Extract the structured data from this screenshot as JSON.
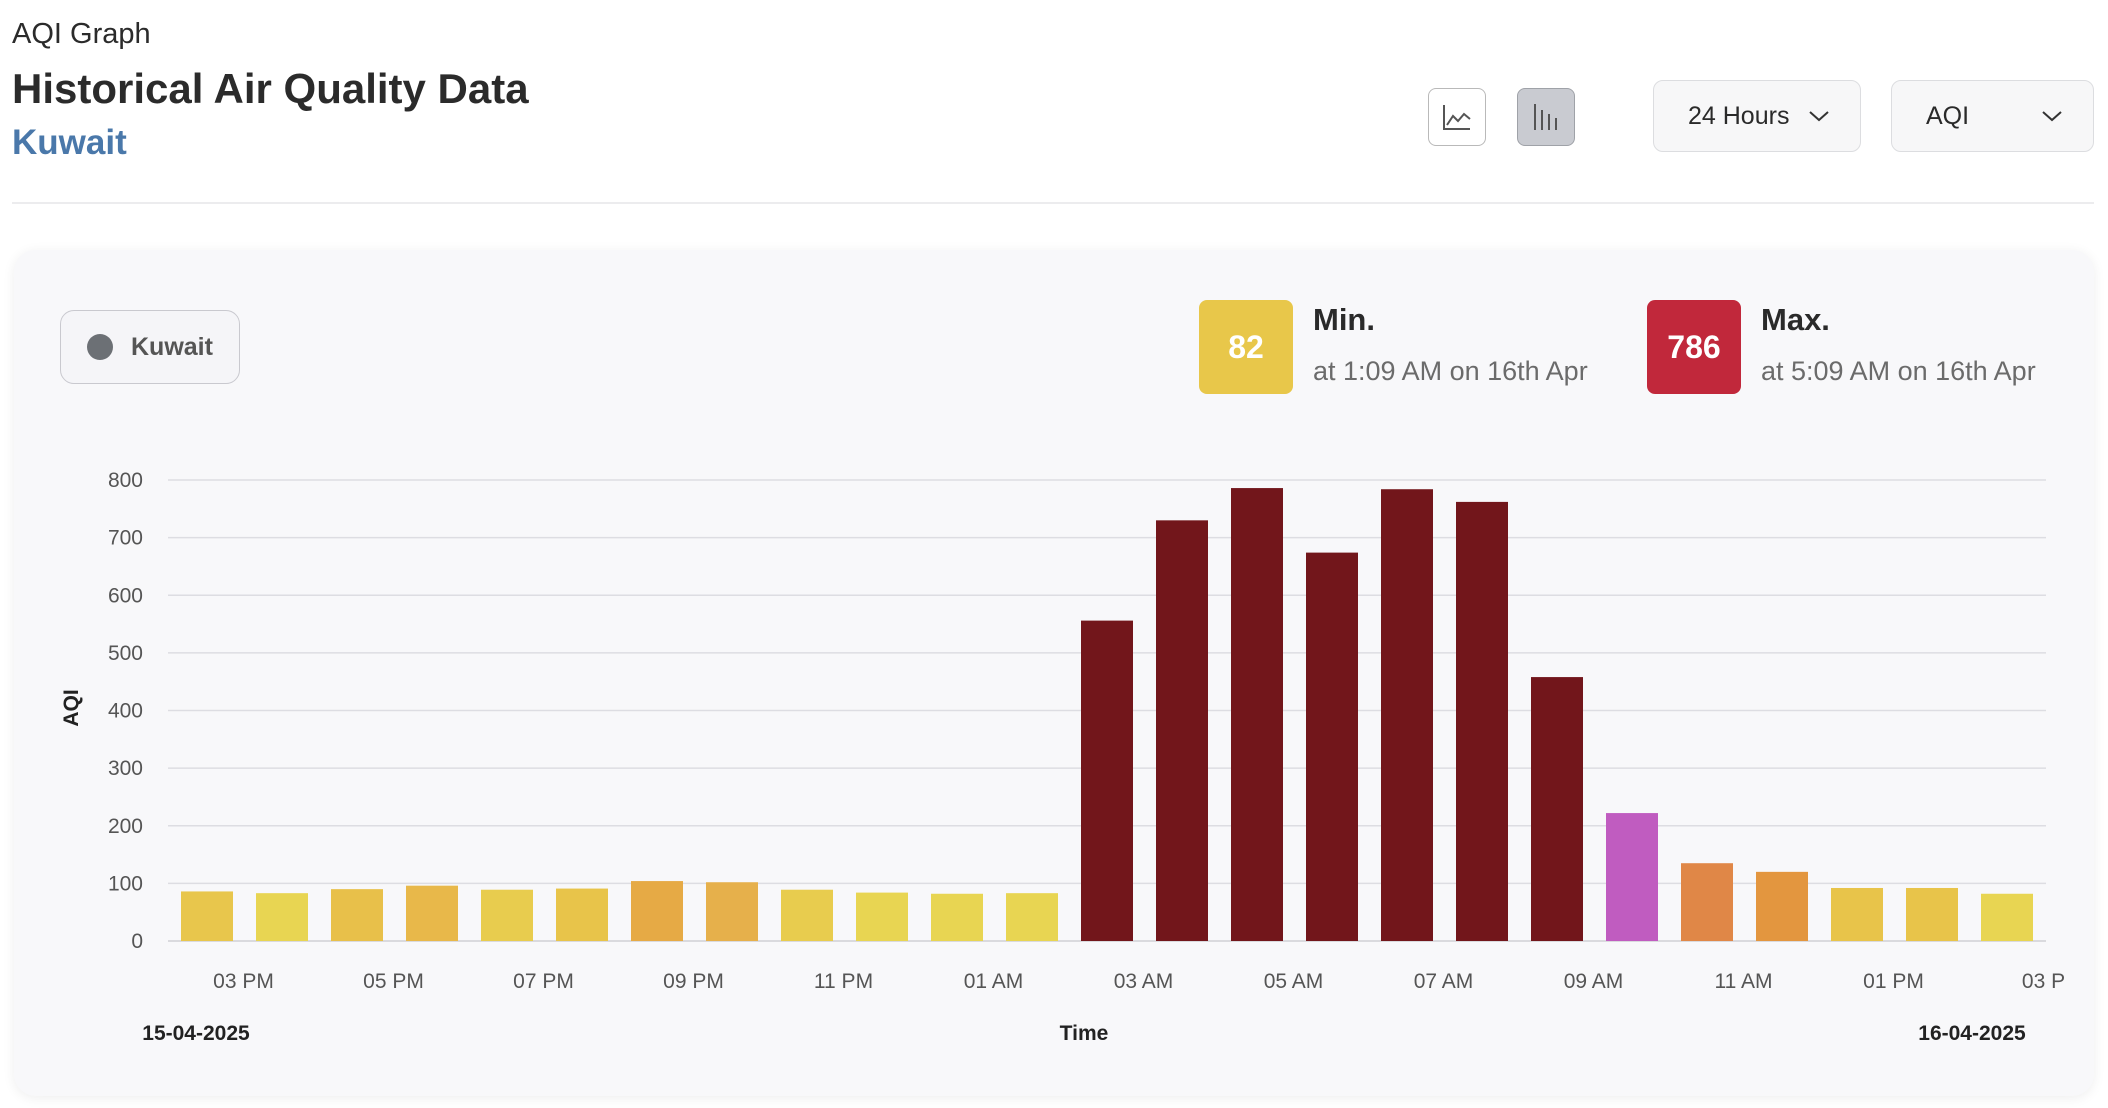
{
  "header": {
    "kicker": "AQI Graph",
    "title": "Historical Air Quality Data",
    "location": "Kuwait"
  },
  "toolbar": {
    "line_icon": "line-chart-icon",
    "bar_icon": "bar-chart-icon",
    "range_select": "24 Hours",
    "metric_select": "AQI"
  },
  "legend": {
    "label": "Kuwait",
    "color": "#6c7075"
  },
  "stats": {
    "min": {
      "value": "82",
      "label": "Min.",
      "detail": "at 1:09 AM on 16th Apr",
      "color": "#e8c74a"
    },
    "max": {
      "value": "786",
      "label": "Max.",
      "detail": "at 5:09 AM on 16th Apr",
      "color": "#c1283b"
    }
  },
  "chart_data": {
    "type": "bar",
    "ylabel": "AQI",
    "xlabel": "Time",
    "ylim": [
      0,
      800
    ],
    "yticks": [
      0,
      100,
      200,
      300,
      400,
      500,
      600,
      700,
      800
    ],
    "start_date": "15-04-2025",
    "end_date": "16-04-2025",
    "grid": true,
    "x_tick_labels": [
      "03 PM",
      "05 PM",
      "07 PM",
      "09 PM",
      "11 PM",
      "01 AM",
      "03 AM",
      "05 AM",
      "07 AM",
      "09 AM",
      "11 AM",
      "01 PM",
      "03 P"
    ],
    "series": [
      {
        "name": "Kuwait",
        "values": [
          86,
          83,
          90,
          96,
          89,
          91,
          104,
          102,
          89,
          84,
          82,
          83,
          556,
          730,
          786,
          674,
          784,
          762,
          458,
          222,
          135,
          120,
          92,
          92,
          82
        ],
        "colors": [
          "#e8c64c",
          "#e8d552",
          "#e8c04a",
          "#e8b84a",
          "#e8cc4e",
          "#e8c44a",
          "#e6aa45",
          "#e6b04b",
          "#e8cc4e",
          "#e8d552",
          "#e8d552",
          "#e8d552",
          "#72161b",
          "#72161b",
          "#72161b",
          "#72161b",
          "#72161b",
          "#72161b",
          "#72161b",
          "#c05cc0",
          "#e08747",
          "#e3963f",
          "#e8c44a",
          "#e8c44a",
          "#e8d552"
        ]
      }
    ]
  }
}
